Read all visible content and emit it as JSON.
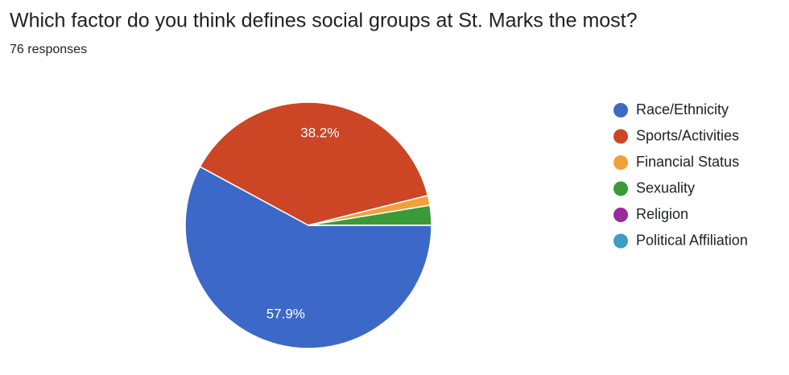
{
  "chart_data": {
    "type": "pie",
    "title": "Which factor do you think defines social groups at St. Marks the most?",
    "subtitle": "76 responses",
    "categories": [
      "Race/Ethnicity",
      "Sports/Activities",
      "Financial Status",
      "Sexuality",
      "Religion",
      "Political Affiliation"
    ],
    "values": [
      57.9,
      38.2,
      1.3,
      2.6,
      0,
      0
    ],
    "value_labels": [
      "57.9%",
      "38.2%",
      null,
      null,
      null,
      null
    ],
    "colors": [
      "#3c69c7",
      "#cc4626",
      "#f2a03a",
      "#3a9a38",
      "#9b2a9c",
      "#3d9cc8"
    ],
    "legend": "right"
  }
}
